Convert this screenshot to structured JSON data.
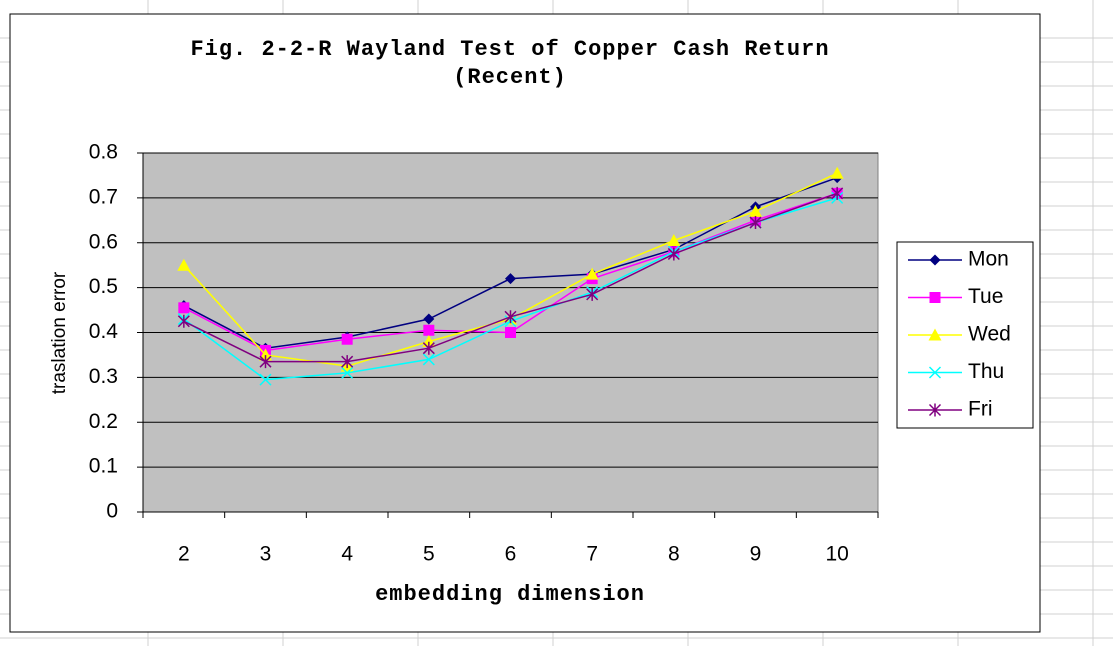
{
  "chart_data": {
    "type": "line",
    "title": "Fig. 2-2-R  Wayland Test of Copper Cash Return\n(Recent)",
    "xlabel": "embedding dimension",
    "ylabel": "traslation error",
    "categories": [
      2,
      3,
      4,
      5,
      6,
      7,
      8,
      9,
      10
    ],
    "series": [
      {
        "name": "Mon",
        "color": "#000080",
        "marker": "diamond",
        "values": [
          0.46,
          0.365,
          0.39,
          0.43,
          0.52,
          0.53,
          0.585,
          0.68,
          0.745
        ]
      },
      {
        "name": "Tue",
        "color": "#ff00ff",
        "marker": "square",
        "values": [
          0.455,
          0.36,
          0.385,
          0.405,
          0.4,
          0.52,
          0.58,
          0.65,
          0.71
        ]
      },
      {
        "name": "Wed",
        "color": "#ffff00",
        "marker": "triangle",
        "values": [
          0.55,
          0.35,
          0.325,
          0.38,
          0.43,
          0.53,
          0.605,
          0.67,
          0.755
        ]
      },
      {
        "name": "Thu",
        "color": "#00ffff",
        "marker": "x",
        "values": [
          0.43,
          0.295,
          0.31,
          0.34,
          0.425,
          0.49,
          0.58,
          0.645,
          0.7
        ]
      },
      {
        "name": "Fri",
        "color": "#800080",
        "marker": "asterisk",
        "values": [
          0.425,
          0.335,
          0.335,
          0.365,
          0.435,
          0.485,
          0.575,
          0.645,
          0.71
        ]
      }
    ],
    "ylim": [
      0,
      0.8
    ],
    "yticks": [
      0,
      0.1,
      0.2,
      0.3,
      0.4,
      0.5,
      0.6,
      0.7,
      0.8
    ],
    "grid": true,
    "legend": "right"
  }
}
